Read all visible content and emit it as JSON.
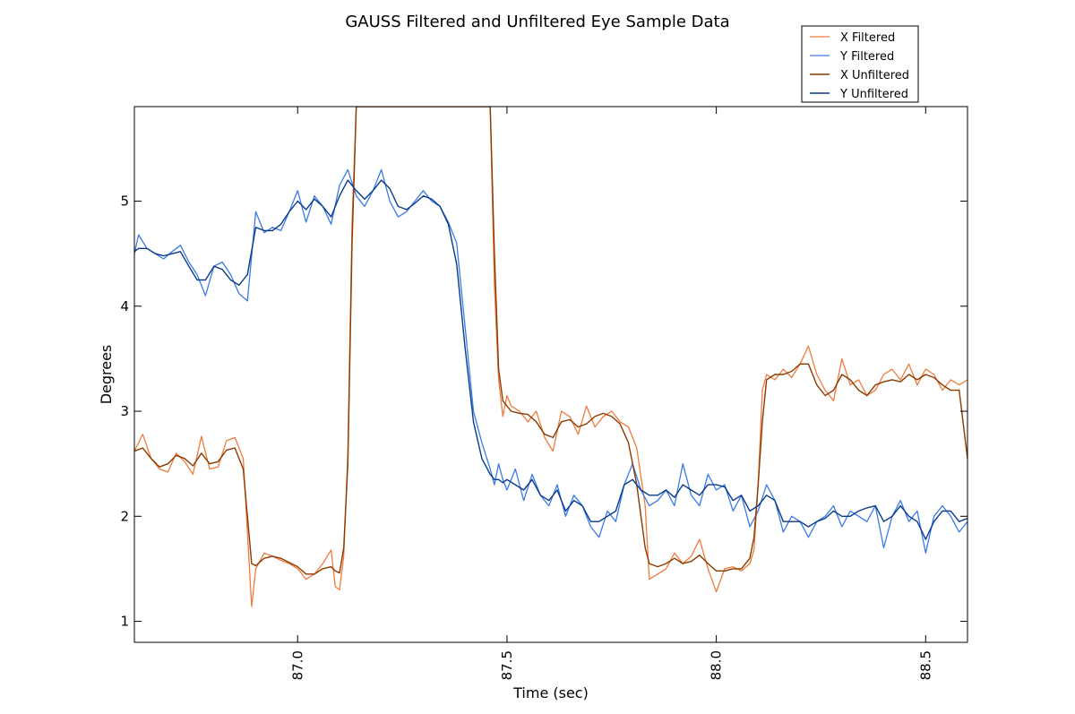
{
  "chart_data": {
    "type": "line",
    "title": "GAUSS Filtered and Unfiltered Eye Sample Data",
    "xlabel": "Time (sec)",
    "ylabel": "Degrees",
    "xlim": [
      86.61,
      88.6
    ],
    "ylim": [
      0.8,
      5.9
    ],
    "xticks": [
      87.0,
      87.5,
      88.0,
      88.5
    ],
    "xtick_labels": [
      "87.0",
      "87.5",
      "88.0",
      "88.5"
    ],
    "yticks": [
      1,
      2,
      3,
      4,
      5
    ],
    "ytick_labels": [
      "1",
      "2",
      "3",
      "4",
      "5"
    ],
    "grid": false,
    "legend_position": "top-right, above plot",
    "series": [
      {
        "name": "X Filtered",
        "color": "#f07b3f",
        "linewidth": 1.3,
        "x": [
          86.61,
          86.63,
          86.65,
          86.67,
          86.69,
          86.71,
          86.73,
          86.75,
          86.77,
          86.79,
          86.81,
          86.83,
          86.85,
          86.87,
          86.88,
          86.89,
          86.9,
          86.92,
          86.94,
          86.96,
          86.98,
          87.0,
          87.02,
          87.04,
          87.06,
          87.08,
          87.09,
          87.1,
          87.11,
          87.12,
          87.13,
          87.14,
          87.46,
          87.47,
          87.48,
          87.49,
          87.5,
          87.51,
          87.53,
          87.55,
          87.57,
          87.59,
          87.61,
          87.63,
          87.65,
          87.67,
          87.69,
          87.71,
          87.73,
          87.75,
          87.77,
          87.79,
          87.81,
          87.83,
          87.84,
          87.86,
          87.88,
          87.9,
          87.92,
          87.94,
          87.96,
          87.98,
          88.0,
          88.02,
          88.04,
          88.06,
          88.08,
          88.09,
          88.1,
          88.11,
          88.12,
          88.14,
          88.16,
          88.18,
          88.2,
          88.22,
          88.24,
          88.26,
          88.28,
          88.3,
          88.32,
          88.34,
          88.36,
          88.38,
          88.4,
          88.42,
          88.44,
          88.46,
          88.48,
          88.5,
          88.52,
          88.54,
          88.56,
          88.58,
          88.6
        ],
        "values": [
          2.62,
          2.78,
          2.55,
          2.45,
          2.42,
          2.6,
          2.52,
          2.4,
          2.76,
          2.45,
          2.47,
          2.72,
          2.75,
          2.55,
          1.85,
          1.14,
          1.5,
          1.65,
          1.62,
          1.58,
          1.55,
          1.5,
          1.4,
          1.45,
          1.55,
          1.68,
          1.33,
          1.3,
          1.62,
          2.6,
          4.8,
          5.9,
          5.9,
          4.2,
          3.3,
          2.95,
          3.15,
          3.05,
          3.0,
          2.9,
          3.0,
          2.75,
          2.62,
          3.0,
          2.95,
          2.78,
          3.05,
          2.85,
          2.95,
          3.0,
          2.9,
          2.85,
          2.65,
          2.1,
          1.4,
          1.45,
          1.5,
          1.65,
          1.55,
          1.62,
          1.78,
          1.5,
          1.28,
          1.5,
          1.52,
          1.48,
          1.55,
          1.68,
          2.3,
          3.2,
          3.35,
          3.3,
          3.4,
          3.32,
          3.45,
          3.62,
          3.35,
          3.2,
          3.1,
          3.5,
          3.25,
          3.3,
          3.15,
          3.2,
          3.35,
          3.4,
          3.3,
          3.45,
          3.25,
          3.4,
          3.35,
          3.2,
          3.3,
          3.25,
          3.3
        ]
      },
      {
        "name": "Y Filtered",
        "color": "#3b7be6",
        "linewidth": 1.3,
        "x": [
          86.61,
          86.62,
          86.64,
          86.66,
          86.68,
          86.7,
          86.72,
          86.74,
          86.76,
          86.78,
          86.8,
          86.82,
          86.84,
          86.86,
          86.88,
          86.9,
          86.92,
          86.94,
          86.96,
          86.98,
          87.0,
          87.02,
          87.04,
          87.06,
          87.08,
          87.1,
          87.12,
          87.14,
          87.16,
          87.18,
          87.2,
          87.22,
          87.24,
          87.26,
          87.28,
          87.3,
          87.32,
          87.34,
          87.36,
          87.38,
          87.4,
          87.42,
          87.44,
          87.46,
          87.47,
          87.48,
          87.49,
          87.5,
          87.52,
          87.54,
          87.56,
          87.58,
          87.6,
          87.62,
          87.64,
          87.66,
          87.68,
          87.7,
          87.72,
          87.74,
          87.76,
          87.78,
          87.8,
          87.82,
          87.84,
          87.86,
          87.88,
          87.9,
          87.92,
          87.94,
          87.96,
          87.98,
          88.0,
          88.02,
          88.04,
          88.06,
          88.08,
          88.1,
          88.12,
          88.14,
          88.16,
          88.18,
          88.2,
          88.22,
          88.24,
          88.26,
          88.28,
          88.3,
          88.32,
          88.34,
          88.36,
          88.38,
          88.4,
          88.42,
          88.44,
          88.46,
          88.48,
          88.5,
          88.52,
          88.54,
          88.56,
          88.58,
          88.6
        ],
        "values": [
          4.5,
          4.68,
          4.55,
          4.5,
          4.45,
          4.52,
          4.58,
          4.42,
          4.3,
          4.1,
          4.38,
          4.42,
          4.3,
          4.12,
          4.05,
          4.9,
          4.7,
          4.75,
          4.72,
          4.9,
          5.1,
          4.8,
          5.05,
          4.95,
          4.78,
          5.15,
          5.3,
          5.05,
          4.95,
          5.1,
          5.3,
          5.0,
          4.85,
          4.9,
          5.0,
          5.1,
          5.0,
          4.95,
          4.8,
          4.6,
          3.8,
          3.0,
          2.7,
          2.45,
          2.3,
          2.5,
          2.35,
          2.25,
          2.45,
          2.15,
          2.4,
          2.2,
          2.1,
          2.3,
          2.0,
          2.2,
          2.1,
          1.9,
          1.8,
          2.05,
          1.95,
          2.3,
          2.5,
          2.25,
          2.1,
          2.15,
          2.25,
          2.1,
          2.5,
          2.2,
          2.1,
          2.4,
          2.25,
          2.3,
          2.05,
          2.2,
          1.9,
          2.05,
          2.3,
          2.15,
          1.85,
          2.0,
          1.95,
          1.8,
          1.95,
          2.0,
          2.1,
          1.9,
          2.05,
          2.0,
          1.95,
          2.1,
          1.7,
          2.0,
          2.15,
          1.95,
          2.05,
          1.65,
          2.0,
          2.1,
          2.0,
          1.85,
          1.95
        ]
      },
      {
        "name": "X Unfiltered",
        "color": "#8b3a00",
        "linewidth": 1.4,
        "x": [
          86.61,
          86.63,
          86.65,
          86.67,
          86.69,
          86.71,
          86.73,
          86.75,
          86.77,
          86.79,
          86.81,
          86.83,
          86.85,
          86.87,
          86.88,
          86.89,
          86.9,
          86.92,
          86.94,
          86.96,
          86.98,
          87.0,
          87.02,
          87.04,
          87.06,
          87.08,
          87.09,
          87.1,
          87.11,
          87.12,
          87.13,
          87.14,
          87.46,
          87.47,
          87.48,
          87.49,
          87.5,
          87.51,
          87.53,
          87.55,
          87.57,
          87.59,
          87.61,
          87.63,
          87.65,
          87.67,
          87.69,
          87.71,
          87.73,
          87.75,
          87.77,
          87.79,
          87.81,
          87.83,
          87.84,
          87.86,
          87.88,
          87.9,
          87.92,
          87.94,
          87.96,
          87.98,
          88.0,
          88.02,
          88.04,
          88.06,
          88.08,
          88.09,
          88.1,
          88.11,
          88.12,
          88.14,
          88.16,
          88.18,
          88.2,
          88.22,
          88.24,
          88.26,
          88.28,
          88.3,
          88.32,
          88.34,
          88.36,
          88.38,
          88.4,
          88.42,
          88.44,
          88.46,
          88.48,
          88.5,
          88.52,
          88.54,
          88.56,
          88.58,
          88.6
        ],
        "values": [
          2.62,
          2.65,
          2.55,
          2.47,
          2.5,
          2.58,
          2.55,
          2.48,
          2.6,
          2.5,
          2.52,
          2.63,
          2.65,
          2.45,
          2.0,
          1.55,
          1.53,
          1.6,
          1.62,
          1.6,
          1.56,
          1.52,
          1.45,
          1.45,
          1.5,
          1.52,
          1.48,
          1.46,
          1.7,
          2.5,
          4.6,
          5.9,
          5.9,
          4.5,
          3.4,
          3.1,
          3.05,
          3.0,
          2.98,
          2.97,
          2.9,
          2.78,
          2.75,
          2.9,
          2.92,
          2.85,
          2.88,
          2.95,
          2.98,
          2.95,
          2.88,
          2.7,
          2.3,
          1.7,
          1.55,
          1.52,
          1.55,
          1.6,
          1.55,
          1.57,
          1.63,
          1.55,
          1.48,
          1.48,
          1.5,
          1.5,
          1.6,
          1.8,
          2.3,
          2.9,
          3.3,
          3.35,
          3.35,
          3.38,
          3.45,
          3.45,
          3.25,
          3.15,
          3.2,
          3.35,
          3.3,
          3.2,
          3.15,
          3.25,
          3.28,
          3.3,
          3.28,
          3.35,
          3.3,
          3.35,
          3.32,
          3.25,
          3.2,
          3.2,
          2.55
        ]
      },
      {
        "name": "Y Unfiltered",
        "color": "#0a3a8a",
        "linewidth": 1.4,
        "x": [
          86.61,
          86.62,
          86.64,
          86.66,
          86.68,
          86.7,
          86.72,
          86.74,
          86.76,
          86.78,
          86.8,
          86.82,
          86.84,
          86.86,
          86.88,
          86.9,
          86.92,
          86.94,
          86.96,
          86.98,
          87.0,
          87.02,
          87.04,
          87.06,
          87.08,
          87.1,
          87.12,
          87.14,
          87.16,
          87.18,
          87.2,
          87.22,
          87.24,
          87.26,
          87.28,
          87.3,
          87.32,
          87.34,
          87.36,
          87.38,
          87.4,
          87.42,
          87.44,
          87.46,
          87.47,
          87.48,
          87.49,
          87.5,
          87.52,
          87.54,
          87.56,
          87.58,
          87.6,
          87.62,
          87.64,
          87.66,
          87.68,
          87.7,
          87.72,
          87.74,
          87.76,
          87.78,
          87.8,
          87.82,
          87.84,
          87.86,
          87.88,
          87.9,
          87.92,
          87.94,
          87.96,
          87.98,
          88.0,
          88.02,
          88.04,
          88.06,
          88.08,
          88.1,
          88.12,
          88.14,
          88.16,
          88.18,
          88.2,
          88.22,
          88.24,
          88.26,
          88.28,
          88.3,
          88.32,
          88.34,
          88.36,
          88.38,
          88.4,
          88.42,
          88.44,
          88.46,
          88.48,
          88.5,
          88.52,
          88.54,
          88.56,
          88.58,
          88.6
        ],
        "values": [
          4.52,
          4.55,
          4.55,
          4.5,
          4.48,
          4.5,
          4.52,
          4.38,
          4.25,
          4.25,
          4.38,
          4.35,
          4.25,
          4.2,
          4.3,
          4.75,
          4.72,
          4.72,
          4.78,
          4.9,
          5.0,
          4.92,
          5.02,
          4.95,
          4.85,
          5.05,
          5.2,
          5.1,
          5.02,
          5.1,
          5.2,
          5.12,
          4.95,
          4.92,
          4.98,
          5.05,
          5.02,
          4.95,
          4.78,
          4.4,
          3.6,
          2.9,
          2.55,
          2.4,
          2.35,
          2.35,
          2.32,
          2.35,
          2.3,
          2.25,
          2.35,
          2.2,
          2.15,
          2.25,
          2.05,
          2.15,
          2.1,
          1.95,
          1.95,
          2.0,
          2.05,
          2.3,
          2.35,
          2.25,
          2.2,
          2.2,
          2.25,
          2.18,
          2.3,
          2.25,
          2.2,
          2.3,
          2.3,
          2.28,
          2.15,
          2.2,
          2.05,
          2.1,
          2.2,
          2.15,
          1.95,
          1.95,
          1.95,
          1.9,
          1.95,
          1.98,
          2.05,
          2.0,
          2.0,
          2.05,
          2.08,
          2.1,
          1.95,
          2.0,
          2.1,
          2.0,
          1.95,
          1.78,
          1.95,
          2.05,
          2.05,
          1.95,
          1.98
        ]
      }
    ]
  }
}
